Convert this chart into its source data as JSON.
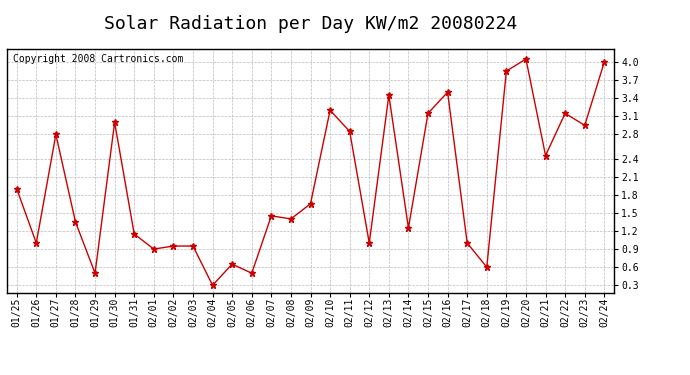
{
  "title": "Solar Radiation per Day KW/m2 20080224",
  "copyright": "Copyright 2008 Cartronics.com",
  "dates": [
    "01/25",
    "01/26",
    "01/27",
    "01/28",
    "01/29",
    "01/30",
    "01/31",
    "02/01",
    "02/02",
    "02/03",
    "02/04",
    "02/05",
    "02/06",
    "02/07",
    "02/08",
    "02/09",
    "02/10",
    "02/11",
    "02/12",
    "02/13",
    "02/14",
    "02/15",
    "02/16",
    "02/17",
    "02/18",
    "02/19",
    "02/20",
    "02/21",
    "02/22",
    "02/23",
    "02/24"
  ],
  "values": [
    1.9,
    1.0,
    2.8,
    1.35,
    0.5,
    3.0,
    1.15,
    0.9,
    0.95,
    0.95,
    0.3,
    0.65,
    0.5,
    1.45,
    1.4,
    1.65,
    3.2,
    2.85,
    1.0,
    3.45,
    1.25,
    3.15,
    3.5,
    1.0,
    0.6,
    3.85,
    4.05,
    2.45,
    3.15,
    2.95,
    4.0
  ],
  "line_color": "#cc0000",
  "marker": "*",
  "marker_size": 5,
  "bg_color": "#ffffff",
  "plot_bg_color": "#ffffff",
  "grid_color": "#bbbbbb",
  "ylim": [
    0.18,
    4.22
  ],
  "yticks": [
    0.3,
    0.6,
    0.9,
    1.2,
    1.5,
    1.8,
    2.1,
    2.4,
    2.8,
    3.1,
    3.4,
    3.7,
    4.0
  ],
  "title_fontsize": 13,
  "copyright_fontsize": 7,
  "tick_fontsize": 7,
  "border_color": "#000000",
  "linewidth": 1.0
}
